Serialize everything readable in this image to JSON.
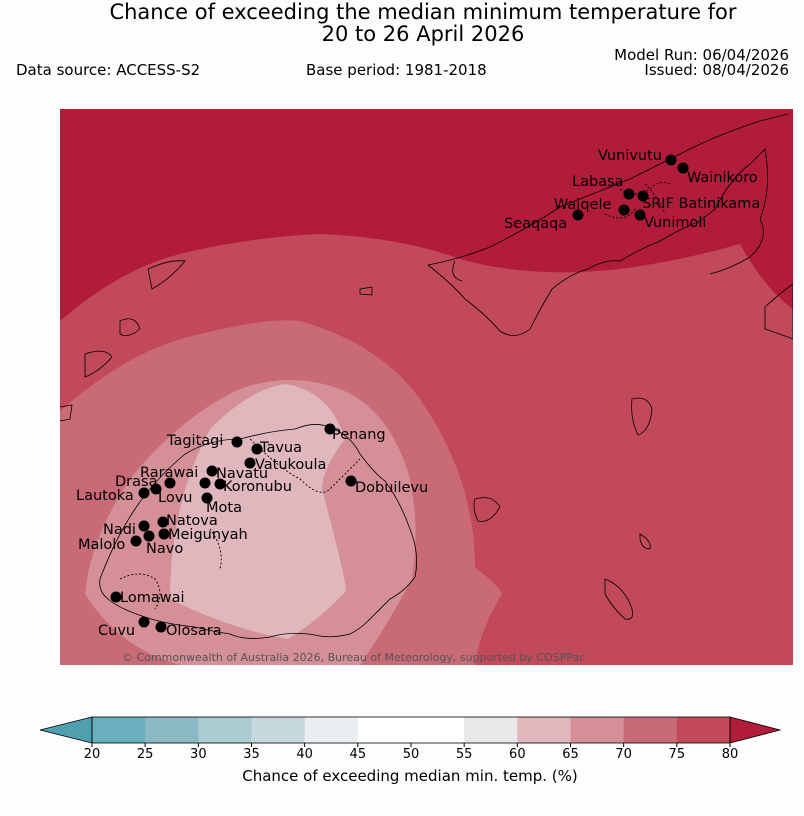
{
  "header": {
    "title_line1": "Chance of exceeding the median minimum temperature for",
    "title_line2": "20 to 26 April 2026",
    "data_source": "Data source: ACCESS-S2",
    "base_period": "Base period: 1981-2018",
    "model_run": "Model Run: 06/04/2026",
    "issued": "Issued: 08/04/2026"
  },
  "map": {
    "copyright": "© Commonwealth of Australia 2026, Bureau of Meteorology, supported by COSPPac",
    "bands": {
      "band_80plus": "#b11c3b",
      "band_75_80": "#c1495a",
      "band_70_75": "#c96b77",
      "band_65_70": "#d48f97",
      "band_60_65": "#dfb7bc"
    },
    "stations": [
      {
        "name": "Vunivutu"
      },
      {
        "name": "Wainikoro"
      },
      {
        "name": "Labasa"
      },
      {
        "name": "SRIF Batinikama"
      },
      {
        "name": "Waiqele"
      },
      {
        "name": "Vunimoli"
      },
      {
        "name": "Seaqaqa"
      },
      {
        "name": "Penang"
      },
      {
        "name": "Tagitagi"
      },
      {
        "name": "Tavua"
      },
      {
        "name": "Vatukoula"
      },
      {
        "name": "Rarawai"
      },
      {
        "name": "Navatu"
      },
      {
        "name": "Drasa"
      },
      {
        "name": "Koronubu"
      },
      {
        "name": "Lautoka"
      },
      {
        "name": "Lovu"
      },
      {
        "name": "Mota"
      },
      {
        "name": "Dobuilevu"
      },
      {
        "name": "Natova"
      },
      {
        "name": "Nadi"
      },
      {
        "name": "Meigunyah"
      },
      {
        "name": "Malolo"
      },
      {
        "name": "Navo"
      },
      {
        "name": "Lomawai"
      },
      {
        "name": "Cuvu"
      },
      {
        "name": "Olosara"
      }
    ]
  },
  "legend": {
    "label": "Chance of exceeding median min. temp. (%)",
    "ticks": [
      "20",
      "25",
      "30",
      "35",
      "40",
      "45",
      "50",
      "55",
      "60",
      "65",
      "70",
      "75",
      "80"
    ],
    "colors": [
      "#6aafbd",
      "#8ab9c4",
      "#a9ccd1",
      "#c6d9dc",
      "#e9eff1",
      "#ffffff",
      "#ffffff",
      "#e9e8e8",
      "#dfb7bc",
      "#d48f97",
      "#c96b77",
      "#c1495a"
    ],
    "low_arrow_color": "#4f9fae",
    "high_arrow_color": "#b11c3b"
  }
}
